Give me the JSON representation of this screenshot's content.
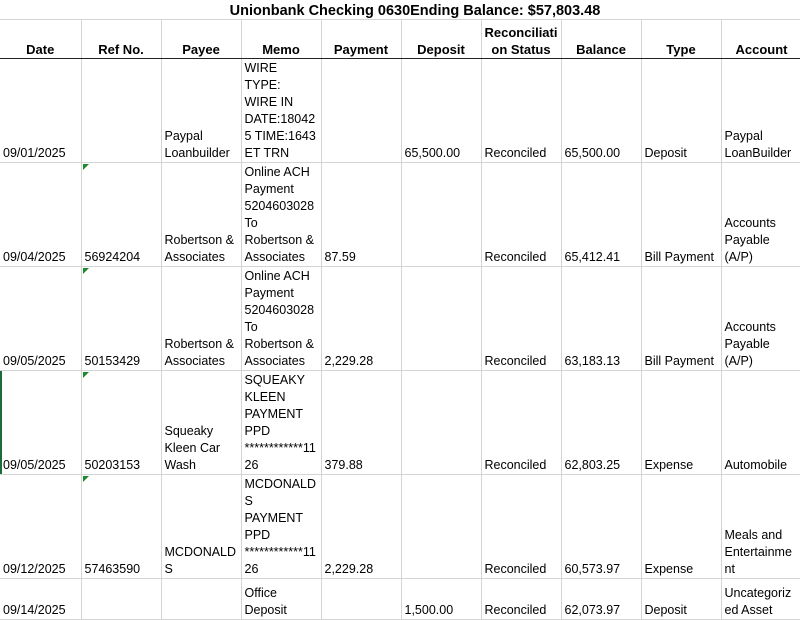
{
  "title": "Unionbank Checking 0630Ending Balance:  $57,803.48",
  "columns": [
    "Date",
    "Ref No.",
    "Payee",
    "Memo",
    "Payment",
    "Deposit",
    "Reconciliati\non Status",
    "Balance",
    "Type",
    "Account"
  ],
  "rows": [
    {
      "cells": [
        "09/01/2025",
        "",
        "Paypal\nLoanbuilder",
        "WIRE\nTYPE:\nWIRE IN\nDATE:18042\n5 TIME:1643\nET TRN",
        "",
        "65,500.00",
        "Reconciled",
        "65,500.00",
        "Deposit",
        "Paypal\nLoanBuilder"
      ],
      "flag": false
    },
    {
      "cells": [
        "09/04/2025",
        "56924204",
        "Robertson &\nAssociates",
        "Online ACH\nPayment\n5204603028\nTo\nRobertson &\nAssociates",
        "87.59",
        "",
        "Reconciled",
        "65,412.41",
        "Bill Payment",
        "Accounts\nPayable\n(A/P)"
      ],
      "flag": true
    },
    {
      "cells": [
        "09/05/2025",
        "50153429",
        "Robertson &\nAssociates",
        "Online ACH\nPayment\n5204603028\nTo\nRobertson &\nAssociates",
        "2,229.28",
        "",
        "Reconciled",
        "63,183.13",
        "Bill Payment",
        "Accounts\nPayable\n(A/P)"
      ],
      "flag": true
    },
    {
      "cells": [
        "09/05/2025",
        "50203153",
        "Squeaky\nKleen Car\nWash",
        "SQUEAKY\nKLEEN\nPAYMENT\nPPD\n************11\n26",
        "379.88",
        "",
        "Reconciled",
        "62,803.25",
        "Expense",
        "Automobile"
      ],
      "flag": true,
      "selected": true
    },
    {
      "cells": [
        "09/12/2025",
        "57463590",
        "MCDONALD\nS",
        "MCDONALD\nS\nPAYMENT\nPPD\n************11\n26",
        "2,229.28",
        "",
        "Reconciled",
        "60,573.97",
        "Expense",
        "Meals and\nEntertainme\nnt"
      ],
      "flag": true
    },
    {
      "cells": [
        "09/14/2025",
        "",
        "",
        "Office\nDeposit",
        "",
        "1,500.00",
        "Reconciled",
        "62,073.97",
        "Deposit",
        "Uncategoriz\ned Asset"
      ],
      "flag": false
    }
  ],
  "colors": {
    "grid": "#d4d4d4",
    "flag": "#1e8a2e"
  }
}
